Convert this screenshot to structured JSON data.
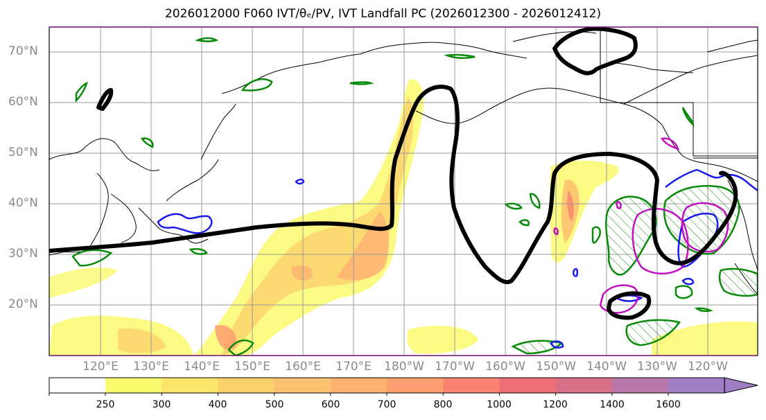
{
  "title": "2026012000 F060 IVT/θₑ/PV, IVT Landfall PC (2026012300 - 2026012412)",
  "map": {
    "projection": "PlateCarree",
    "lon_range": [
      110,
      250
    ],
    "lat_range": [
      10,
      75
    ],
    "lat_labels": [
      "70°N",
      "60°N",
      "50°N",
      "40°N",
      "30°N",
      "20°N"
    ],
    "lon_labels": [
      "120°E",
      "130°E",
      "140°E",
      "150°E",
      "160°E",
      "170°E",
      "180°W",
      "170°W",
      "160°W",
      "150°W",
      "140°W",
      "130°W",
      "120°W"
    ],
    "layers": {
      "ivt_shading": "IVT (kg m-1 s-1) filled contours",
      "theta_e": "θₑ contour (black)",
      "pv_green": "PV contour (green)",
      "pv_blue": "PV contour (blue)",
      "pv_magenta": "PV contour (magenta)"
    }
  },
  "colorbar": {
    "ticks": [
      "250",
      "300",
      "400",
      "500",
      "600",
      "700",
      "800",
      "1000",
      "1200",
      "1400",
      "1600"
    ],
    "colors": [
      "#fafa6e",
      "#fbe46a",
      "#fcd06a",
      "#fdc270",
      "#fdb272",
      "#fd9e70",
      "#f9836e",
      "#ef6f76",
      "#d87088",
      "#b777a9",
      "#a07ec4"
    ],
    "extend": "max"
  }
}
